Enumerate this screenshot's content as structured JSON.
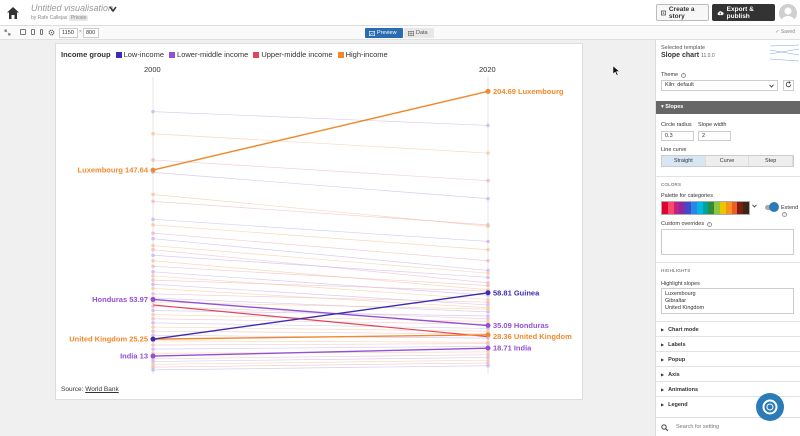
{
  "header": {
    "title": "Untitled visualisation",
    "byline": "by Rafe Callejas",
    "privacy": "Private",
    "create_story": "Create a story",
    "export_publish": "Export & publish"
  },
  "toolbar": {
    "width": "1150",
    "height": "800",
    "separator": "×",
    "tab_preview": "Preview",
    "tab_data": "Data",
    "status": "Saved"
  },
  "chart": {
    "legend_title": "Income group",
    "legend": [
      {
        "label": "Low-income",
        "color": "#3b2cb3"
      },
      {
        "label": "Lower-middle income",
        "color": "#9250d8"
      },
      {
        "label": "Upper-middle income",
        "color": "#e0455a"
      },
      {
        "label": "High-income",
        "color": "#f0892c"
      }
    ],
    "source_label": "Source:",
    "source_link": "World Bank",
    "labels": [
      {
        "text": "Luxembourg 147.64",
        "color": "#f0892c"
      },
      {
        "text": "Honduras 53.97",
        "color": "#9250d8"
      },
      {
        "text": "United Kingdom 25.25",
        "color": "#f0892c"
      },
      {
        "text": "India 13",
        "color": "#9250d8"
      },
      {
        "text": "204.69 Luxembourg",
        "color": "#f0892c"
      },
      {
        "text": "58.81 Guinea",
        "color": "#3b2cb3"
      },
      {
        "text": "35.09 Honduras",
        "color": "#9250d8"
      },
      {
        "text": "28.36 United Kingdom",
        "color": "#f0892c"
      },
      {
        "text": "18.71 India",
        "color": "#9250d8"
      }
    ]
  },
  "chart_data": {
    "type": "line",
    "x": [
      "2000",
      "2020"
    ],
    "series": [
      {
        "name": "Luxembourg",
        "group": "High-income",
        "values": [
          147.64,
          204.69
        ]
      },
      {
        "name": "Honduras",
        "group": "Lower-middle income",
        "values": [
          53.97,
          35.09
        ]
      },
      {
        "name": "United Kingdom",
        "group": "High-income",
        "values": [
          25.25,
          28.36
        ]
      },
      {
        "name": "India",
        "group": "Lower-middle income",
        "values": [
          13,
          18.71
        ]
      },
      {
        "name": "Guinea",
        "group": "Low-income",
        "values": [
          25.25,
          58.81
        ]
      }
    ],
    "extra_upper_middle": [
      50,
      27
    ],
    "background_lines": [
      [
        190,
        180
      ],
      [
        174,
        160
      ],
      [
        155,
        140
      ],
      [
        146,
        127
      ],
      [
        130,
        107
      ],
      [
        125,
        108
      ],
      [
        112,
        96
      ],
      [
        108,
        90
      ],
      [
        102,
        82
      ],
      [
        98,
        75
      ],
      [
        93,
        73
      ],
      [
        90,
        66
      ],
      [
        86,
        70
      ],
      [
        82,
        61
      ],
      [
        78,
        64
      ],
      [
        74,
        57
      ],
      [
        71,
        54
      ],
      [
        68,
        60
      ],
      [
        65,
        50
      ],
      [
        62,
        48
      ],
      [
        58,
        52
      ],
      [
        55,
        45
      ],
      [
        52,
        47
      ],
      [
        49,
        40
      ],
      [
        46,
        42
      ],
      [
        43,
        38
      ],
      [
        40,
        36
      ],
      [
        37,
        33
      ],
      [
        34,
        31
      ],
      [
        31,
        29
      ],
      [
        28,
        26
      ],
      [
        24,
        23
      ],
      [
        21,
        22
      ],
      [
        18,
        20
      ],
      [
        15,
        16
      ],
      [
        11,
        14
      ],
      [
        9,
        12
      ],
      [
        7,
        10
      ],
      [
        5,
        8
      ],
      [
        3,
        6
      ]
    ],
    "ylim": [
      0,
      210
    ],
    "grid": false,
    "legend": "top-left"
  },
  "panel": {
    "template_label": "Selected template",
    "template_name": "Slope chart",
    "template_version": "11.0.0",
    "theme_label": "Theme",
    "theme_value": "Kiln: default",
    "section_slopes": "Slopes",
    "circle_radius_label": "Circle radius",
    "circle_radius_value": "0.3",
    "slope_width_label": "Slope width",
    "slope_width_value": "2",
    "line_curve_label": "Line curve",
    "curve_options": [
      "Straight",
      "Curve",
      "Step"
    ],
    "colors_caps": "COLORS",
    "palette_label": "Palette for categories",
    "palette_colors": [
      "#e3002c",
      "#f44d6c",
      "#c6207f",
      "#8c27a6",
      "#3f4bc7",
      "#2a86e6",
      "#00b7e6",
      "#00a39a",
      "#2f8c3a",
      "#8ec63f",
      "#e8c700",
      "#f7941d",
      "#ef5a26",
      "#7a1e12",
      "#3b2418"
    ],
    "extend_label": "Extend",
    "custom_overrides_label": "Custom overrides",
    "highlights_caps": "HIGHLIGHTS",
    "highlight_label": "Highlight slopes",
    "highlight_value": "Luxembourg\nGibraltar\nUnited Kingdom",
    "sections": [
      "Chart mode",
      "Labels",
      "Popup",
      "Axis",
      "Animations",
      "Legend"
    ],
    "search_placeholder": "Search for setting"
  }
}
